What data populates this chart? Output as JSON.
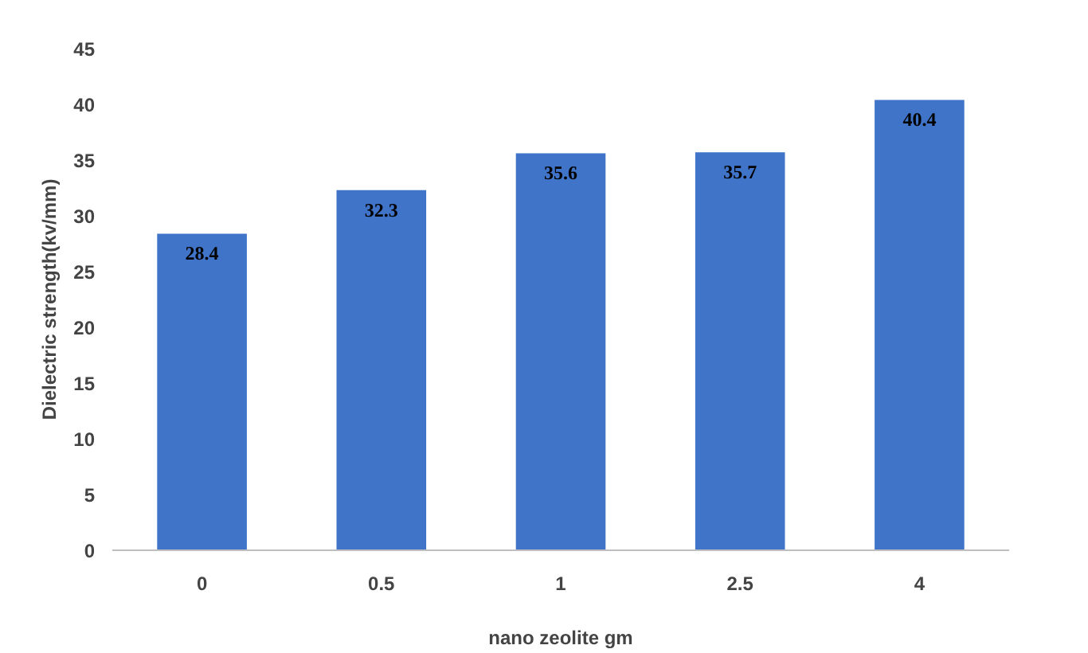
{
  "chart_data": {
    "type": "bar",
    "xlabel": "nano zeolite gm",
    "ylabel": "Dielectric strength(kv/mm)",
    "categories": [
      "0",
      "0.5",
      "1",
      "2.5",
      "4"
    ],
    "values": [
      28.4,
      32.3,
      35.6,
      35.7,
      40.4
    ],
    "color": "#3f74c8",
    "ylim": [
      0,
      45
    ],
    "yticks": [
      0,
      5,
      10,
      15,
      20,
      25,
      30,
      35,
      40,
      45
    ],
    "grid": false,
    "data_labels": true
  }
}
